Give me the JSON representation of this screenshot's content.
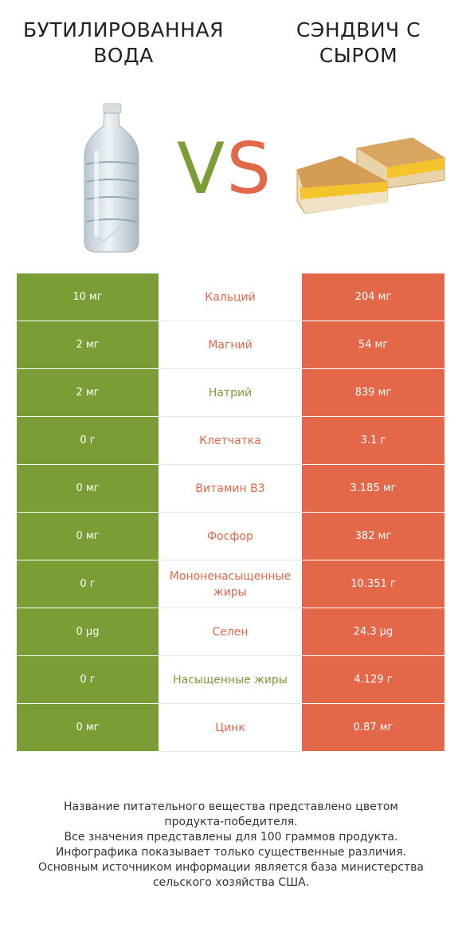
{
  "header": {
    "left_title": "БУТИЛИРОВАННАЯ ВОДА",
    "right_title": "СЭНДВИЧ С СЫРОМ",
    "vs_v": "V",
    "vs_s": "S"
  },
  "colors": {
    "left": "#7a9e35",
    "right": "#e3684a"
  },
  "images": {
    "left": "water-bottle-image",
    "right": "cheese-sandwich-image"
  },
  "rows": [
    {
      "left": "10 мг",
      "name": "Кальций",
      "right": "204 мг",
      "winner": "right"
    },
    {
      "left": "2 мг",
      "name": "Магний",
      "right": "54 мг",
      "winner": "right"
    },
    {
      "left": "2 мг",
      "name": "Натрий",
      "right": "839 мг",
      "winner": "left"
    },
    {
      "left": "0 г",
      "name": "Клетчатка",
      "right": "3.1 г",
      "winner": "right"
    },
    {
      "left": "0 мг",
      "name": "Витамин B3",
      "right": "3.185 мг",
      "winner": "right"
    },
    {
      "left": "0 мг",
      "name": "Фосфор",
      "right": "382 мг",
      "winner": "right"
    },
    {
      "left": "0 г",
      "name": "Мононенасыщенные жиры",
      "right": "10.351 г",
      "winner": "right"
    },
    {
      "left": "0 µg",
      "name": "Селен",
      "right": "24.3 µg",
      "winner": "right"
    },
    {
      "left": "0 г",
      "name": "Насыщенные жиры",
      "right": "4.129 г",
      "winner": "left"
    },
    {
      "left": "0 мг",
      "name": "Цинк",
      "right": "0.87 мг",
      "winner": "right"
    }
  ],
  "footnote": [
    "Название питательного вещества представлено цветом",
    "продукта-победителя.",
    "Все значения представлены для 100 граммов продукта.",
    "Инфографика показывает только существенные различия.",
    "Основным источником информации является база министерства",
    "сельского хозяйства США."
  ]
}
